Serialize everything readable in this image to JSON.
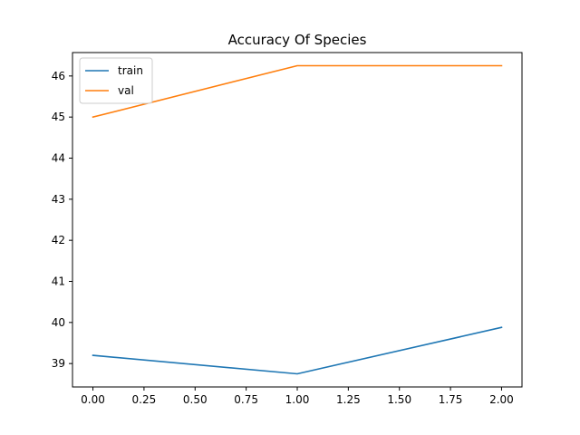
{
  "chart_data": {
    "type": "line",
    "title": "Accuracy Of Species",
    "xlabel": "",
    "ylabel": "",
    "x": [
      0,
      1,
      2
    ],
    "series": [
      {
        "name": "train",
        "color": "#1f77b4",
        "values": [
          39.2,
          38.75,
          39.88
        ]
      },
      {
        "name": "val",
        "color": "#ff7f0e",
        "values": [
          45.0,
          46.25,
          46.25
        ]
      }
    ],
    "xlim": [
      -0.1,
      2.1
    ],
    "ylim": [
      38.43,
      46.57
    ],
    "xticks": [
      0.0,
      0.25,
      0.5,
      0.75,
      1.0,
      1.25,
      1.5,
      1.75,
      2.0
    ],
    "xtick_labels": [
      "0.00",
      "0.25",
      "0.50",
      "0.75",
      "1.00",
      "1.25",
      "1.50",
      "1.75",
      "2.00"
    ],
    "yticks": [
      39,
      40,
      41,
      42,
      43,
      44,
      45,
      46
    ],
    "ytick_labels": [
      "39",
      "40",
      "41",
      "42",
      "43",
      "44",
      "45",
      "46"
    ],
    "grid": false,
    "legend": {
      "position": "top-left"
    }
  }
}
